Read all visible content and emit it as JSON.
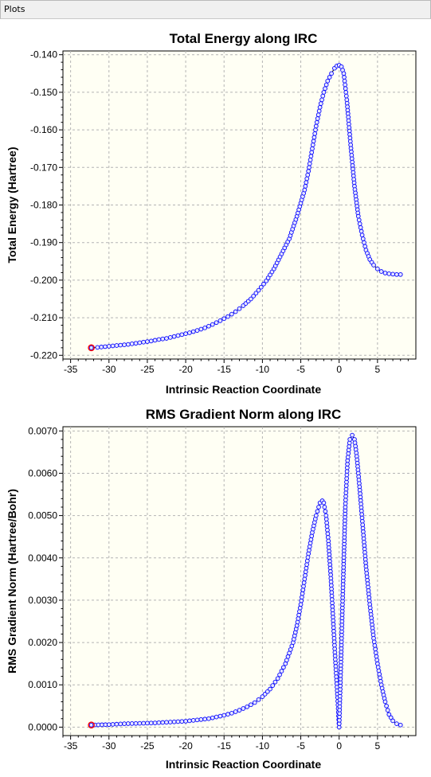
{
  "window": {
    "title": "Plots"
  },
  "chart_data": [
    {
      "type": "line",
      "title": "Total Energy along IRC",
      "xlabel": "Intrinsic Reaction Coordinate",
      "ylabel": "Total Energy (Hartree)",
      "xlim": [
        -36,
        10
      ],
      "ylim": [
        -0.221,
        -0.139
      ],
      "xticks": [
        -35,
        -30,
        -25,
        -20,
        -15,
        -10,
        -5,
        0,
        5
      ],
      "yticks": [
        -0.14,
        -0.15,
        -0.16,
        -0.17,
        -0.18,
        -0.19,
        -0.2,
        -0.21,
        -0.22
      ],
      "ytick_labels": [
        "-0.140",
        "-0.150",
        "-0.160",
        "-0.170",
        "-0.180",
        "-0.190",
        "-0.200",
        "-0.210",
        "-0.220"
      ],
      "grid": true,
      "line_color": "#000000",
      "marker_color": "#0000ff",
      "highlight_color": "#ff0000",
      "highlight_point": [
        -32.3,
        -0.218
      ],
      "x": [
        -32.3,
        -31.5,
        -30.5,
        -29.5,
        -28.5,
        -27.5,
        -26.5,
        -25.5,
        -24.5,
        -23.5,
        -22.5,
        -21.5,
        -20.5,
        -19.5,
        -18.5,
        -17.5,
        -16.5,
        -15.5,
        -14.5,
        -13.5,
        -12.5,
        -11.5,
        -10.5,
        -9.5,
        -8.5,
        -7.5,
        -6.5,
        -5.5,
        -4.5,
        -4.0,
        -3.5,
        -3.0,
        -2.5,
        -2.0,
        -1.5,
        -1.0,
        -0.6,
        -0.3,
        0.0,
        0.3,
        0.6,
        1.0,
        1.5,
        2.0,
        2.5,
        3.0,
        3.5,
        4.0,
        4.5,
        5.0,
        5.5,
        6.0,
        6.5,
        7.0,
        7.5,
        8.0
      ],
      "y": [
        -0.218,
        -0.2179,
        -0.2177,
        -0.2175,
        -0.2173,
        -0.2171,
        -0.2168,
        -0.2165,
        -0.2162,
        -0.2158,
        -0.2155,
        -0.215,
        -0.2145,
        -0.214,
        -0.2134,
        -0.2127,
        -0.2118,
        -0.2108,
        -0.2097,
        -0.2084,
        -0.2068,
        -0.205,
        -0.2027,
        -0.2002,
        -0.197,
        -0.193,
        -0.189,
        -0.183,
        -0.176,
        -0.171,
        -0.165,
        -0.159,
        -0.154,
        -0.15,
        -0.147,
        -0.145,
        -0.1436,
        -0.143,
        -0.1428,
        -0.1432,
        -0.145,
        -0.152,
        -0.164,
        -0.175,
        -0.183,
        -0.188,
        -0.192,
        -0.1945,
        -0.196,
        -0.197,
        -0.1977,
        -0.1981,
        -0.1983,
        -0.1984,
        -0.1985,
        -0.1985
      ]
    },
    {
      "type": "line",
      "title": "RMS Gradient Norm along IRC",
      "xlabel": "Intrinsic Reaction Coordinate",
      "ylabel": "RMS Gradient Norm (Hartree/Bohr)",
      "xlim": [
        -36,
        10
      ],
      "ylim": [
        -0.0002,
        0.0071
      ],
      "xticks": [
        -35,
        -30,
        -25,
        -20,
        -15,
        -10,
        -5,
        0,
        5
      ],
      "yticks": [
        0.0,
        0.001,
        0.002,
        0.003,
        0.004,
        0.005,
        0.006,
        0.007
      ],
      "ytick_labels": [
        "0.0000",
        "0.0010",
        "0.0020",
        "0.0030",
        "0.0040",
        "0.0050",
        "0.0060",
        "0.0070"
      ],
      "grid": true,
      "line_color": "#000000",
      "marker_color": "#0000ff",
      "highlight_color": "#ff0000",
      "highlight_point": [
        -32.3,
        5e-05
      ],
      "x": [
        -32.3,
        -30,
        -28,
        -26,
        -24,
        -22,
        -20,
        -18,
        -17,
        -16,
        -15,
        -14,
        -13,
        -12,
        -11,
        -10,
        -9,
        -8,
        -7,
        -6,
        -5.5,
        -5,
        -4.5,
        -4,
        -3.5,
        -3,
        -2.5,
        -2.2,
        -2.0,
        -1.7,
        -1.4,
        -1.1,
        -0.8,
        -0.5,
        -0.2,
        0.0,
        0.2,
        0.5,
        0.8,
        1.1,
        1.4,
        1.7,
        2.0,
        2.3,
        2.7,
        3.1,
        3.5,
        4.0,
        4.5,
        5.0,
        5.5,
        6.0,
        6.5,
        7.0,
        7.5,
        8.0
      ],
      "y": [
        5e-05,
        6e-05,
        8e-05,
        9e-05,
        0.0001,
        0.00012,
        0.00014,
        0.00018,
        0.0002,
        0.00024,
        0.00028,
        0.00033,
        0.0004,
        0.00048,
        0.00058,
        0.00072,
        0.0009,
        0.00115,
        0.0015,
        0.002,
        0.0024,
        0.0029,
        0.0035,
        0.0041,
        0.0046,
        0.005,
        0.0053,
        0.00535,
        0.0053,
        0.005,
        0.0044,
        0.0036,
        0.0026,
        0.0016,
        0.0007,
        0.0,
        0.0013,
        0.0033,
        0.0052,
        0.0063,
        0.0068,
        0.0069,
        0.0068,
        0.0064,
        0.0056,
        0.0047,
        0.0038,
        0.0029,
        0.0021,
        0.0015,
        0.001,
        0.0006,
        0.0003,
        0.00015,
        8e-05,
        5e-05
      ]
    }
  ]
}
